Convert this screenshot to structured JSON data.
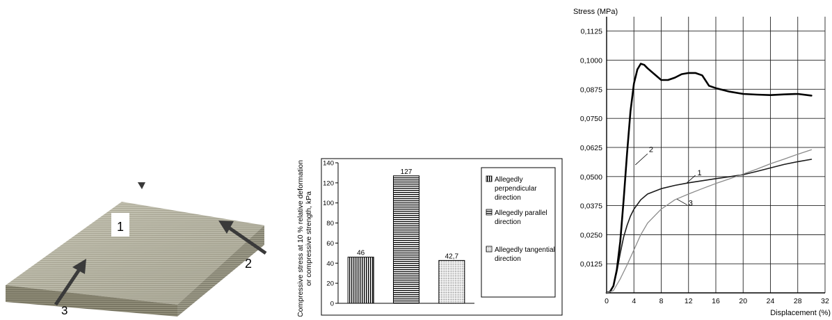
{
  "photo": {
    "labels": [
      "1",
      "2",
      "3"
    ]
  },
  "chart_data": [
    {
      "type": "bar",
      "categories": [
        "Allegedly perpendicular direction",
        "Allegedly parallel direction",
        "Allegedly tangential direction"
      ],
      "values": [
        46,
        127,
        42.7
      ],
      "value_labels": [
        "46",
        "127",
        "42,7"
      ],
      "ylabel": "Compressive stress at 10 % relative deformation or compressive strength, kPa",
      "ylabel_lines": [
        "Compressive stress at 10 % relative deformation",
        "or compressive strength, kPa"
      ],
      "ylim": [
        0,
        140
      ],
      "yticks": [
        0,
        20,
        40,
        60,
        80,
        100,
        120,
        140
      ],
      "legend": [
        {
          "lines": [
            "Allegedly",
            "perpendicular",
            "direction"
          ],
          "pattern": "vertical"
        },
        {
          "lines": [
            "Allegedly      parallel",
            "direction"
          ],
          "pattern": "horizontal"
        },
        {
          "lines": [
            "Allegedly tangential",
            "direction"
          ],
          "pattern": "dots"
        }
      ],
      "legend_position": "right",
      "grid": false
    },
    {
      "type": "line",
      "ylabel": "Stress (MPa)",
      "xlabel": "Displacement (%)",
      "xlim": [
        0,
        32
      ],
      "ylim": [
        0,
        0.1187
      ],
      "xticks": [
        0,
        4,
        8,
        12,
        16,
        20,
        24,
        28,
        32
      ],
      "xtick_labels": [
        "0",
        "4",
        "8",
        "12",
        "16",
        "20",
        "24",
        "28",
        "32"
      ],
      "yticks": [
        0.0125,
        0.025,
        0.0375,
        0.05,
        0.0625,
        0.075,
        0.0875,
        0.1,
        0.1125
      ],
      "ytick_labels": [
        "0,0125",
        "0,0250",
        "0,0375",
        "0,0500",
        "0,0625",
        "0,0750",
        "0,0875",
        "0,1000",
        "0,1125"
      ],
      "grid": true,
      "series": [
        {
          "name": "1",
          "color": "#1a1a1a",
          "width": 1.6,
          "x": [
            0,
            0.5,
            1,
            1.5,
            2,
            2.5,
            3,
            3.5,
            4,
            5,
            6,
            8,
            10,
            12,
            14,
            16,
            18,
            20,
            22,
            24,
            26,
            28,
            30
          ],
          "y": [
            0,
            0.0005,
            0.003,
            0.009,
            0.017,
            0.024,
            0.029,
            0.033,
            0.036,
            0.04,
            0.0425,
            0.0448,
            0.0462,
            0.0473,
            0.0482,
            0.0491,
            0.0499,
            0.0508,
            0.0522,
            0.0537,
            0.0552,
            0.0564,
            0.0574
          ]
        },
        {
          "name": "2",
          "color": "#000000",
          "width": 2.6,
          "x": [
            0,
            0.5,
            1,
            1.5,
            2,
            2.5,
            3,
            3.5,
            4,
            4.5,
            5,
            5.5,
            6,
            7,
            8,
            9,
            10,
            11,
            12,
            13,
            14,
            15,
            16,
            18,
            20,
            22,
            24,
            26,
            28,
            30
          ],
          "y": [
            0,
            0.0005,
            0.003,
            0.01,
            0.022,
            0.04,
            0.06,
            0.078,
            0.09,
            0.096,
            0.0985,
            0.098,
            0.0965,
            0.094,
            0.0915,
            0.0915,
            0.0925,
            0.094,
            0.0945,
            0.0945,
            0.0935,
            0.089,
            0.088,
            0.0865,
            0.0855,
            0.0852,
            0.085,
            0.0853,
            0.0855,
            0.0848
          ]
        },
        {
          "name": "3",
          "color": "#8a8a8a",
          "width": 1.3,
          "x": [
            0,
            1,
            2,
            3,
            4,
            5,
            6,
            8,
            10,
            12,
            14,
            16,
            18,
            20,
            22,
            24,
            26,
            28,
            30
          ],
          "y": [
            0,
            0.001,
            0.006,
            0.012,
            0.0185,
            0.025,
            0.03,
            0.036,
            0.04,
            0.0425,
            0.0448,
            0.047,
            0.049,
            0.0511,
            0.0532,
            0.0555,
            0.0575,
            0.0596,
            0.0615
          ]
        }
      ],
      "annotations": [
        {
          "text": "2",
          "x": 6.2,
          "y": 0.0605,
          "lx1": 6.0,
          "ly1": 0.0598,
          "lx2": 4.2,
          "ly2": 0.055
        },
        {
          "text": "1",
          "x": 13.3,
          "y": 0.0505,
          "lx1": 13.0,
          "ly1": 0.0505,
          "lx2": 11.8,
          "ly2": 0.0474
        },
        {
          "text": "3",
          "x": 12.0,
          "y": 0.0375,
          "lx1": 11.8,
          "ly1": 0.0378,
          "lx2": 10.3,
          "ly2": 0.0403
        }
      ]
    }
  ]
}
